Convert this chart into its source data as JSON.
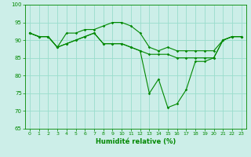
{
  "xlabel": "Humidité relative (%)",
  "bg_color": "#cceee8",
  "grid_color": "#99ddcc",
  "line_color": "#008800",
  "line1": [
    92,
    91,
    91,
    88,
    92,
    92,
    93,
    93,
    94,
    95,
    95,
    94,
    92,
    88,
    87,
    88,
    87,
    87,
    87,
    87,
    87,
    90,
    91,
    91
  ],
  "line2": [
    92,
    91,
    91,
    88,
    89,
    90,
    91,
    92,
    89,
    89,
    89,
    88,
    87,
    75,
    79,
    71,
    72,
    76,
    84,
    84,
    85,
    90,
    91,
    91
  ],
  "line3": [
    92,
    91,
    91,
    88,
    89,
    90,
    91,
    92,
    89,
    89,
    89,
    88,
    87,
    86,
    86,
    86,
    85,
    85,
    85,
    85,
    85,
    90,
    91,
    91
  ],
  "xlim": [
    -0.5,
    23.5
  ],
  "ylim": [
    65,
    100
  ],
  "yticks": [
    65,
    70,
    75,
    80,
    85,
    90,
    95,
    100
  ],
  "xticks": [
    0,
    1,
    2,
    3,
    4,
    5,
    6,
    7,
    8,
    9,
    10,
    11,
    12,
    13,
    14,
    15,
    16,
    17,
    18,
    19,
    20,
    21,
    22,
    23
  ]
}
